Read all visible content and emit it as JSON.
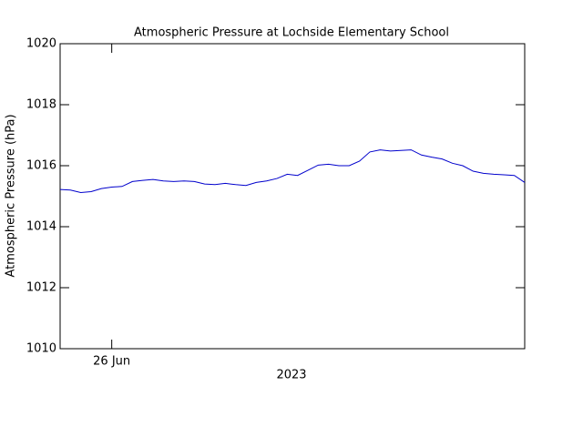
{
  "chart_data": {
    "type": "line",
    "title": "Atmospheric Pressure at Lochside Elementary School",
    "ylabel": "Atmospheric Pressure (hPa)",
    "xlabel": "2023",
    "categories": [
      null,
      null,
      null,
      null,
      null,
      "26 Jun",
      null,
      null,
      null,
      null,
      null,
      null,
      null,
      null,
      null,
      null,
      null,
      null,
      null,
      null,
      null,
      null,
      null,
      null,
      null,
      null,
      null,
      null,
      null,
      null,
      null,
      null,
      null,
      null,
      null,
      null,
      null,
      null,
      null,
      null,
      null,
      null,
      null,
      null,
      null,
      null
    ],
    "series": [
      {
        "name": "Atmospheric Pressure",
        "color": "#0000cc",
        "values": [
          1015.22,
          1015.2,
          1015.12,
          1015.15,
          1015.25,
          1015.3,
          1015.32,
          1015.48,
          1015.52,
          1015.55,
          1015.5,
          1015.48,
          1015.5,
          1015.48,
          1015.4,
          1015.38,
          1015.42,
          1015.38,
          1015.35,
          1015.45,
          1015.5,
          1015.58,
          1015.72,
          1015.68,
          1015.85,
          1016.02,
          1016.05,
          1016.0,
          1016.0,
          1016.15,
          1016.45,
          1016.52,
          1016.48,
          1016.5,
          1016.52,
          1016.35,
          1016.28,
          1016.22,
          1016.08,
          1016.0,
          1015.82,
          1015.75,
          1015.72,
          1015.7,
          1015.68,
          1015.45
        ]
      }
    ],
    "ylim": [
      1010,
      1020
    ],
    "yticks": [
      1010,
      1012,
      1014,
      1016,
      1018,
      1020
    ]
  }
}
